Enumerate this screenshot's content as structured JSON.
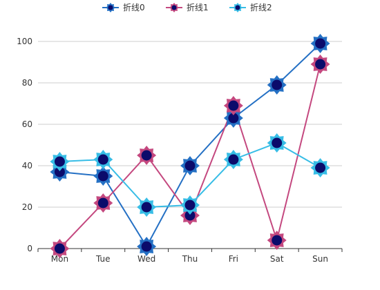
{
  "chart_data": {
    "type": "line",
    "categories": [
      "Mon",
      "Tue",
      "Wed",
      "Thu",
      "Fri",
      "Sat",
      "Sun"
    ],
    "ylim": [
      0,
      100
    ],
    "yticks": [
      0,
      20,
      40,
      60,
      80,
      100
    ],
    "grid": true,
    "legend_position": "top-center",
    "series": [
      {
        "name": "折线0",
        "color": "#2470c4",
        "values": [
          37,
          35,
          1,
          40,
          63,
          79,
          99
        ]
      },
      {
        "name": "折线1",
        "color": "#c4487f",
        "values": [
          0,
          22,
          45,
          16,
          69,
          4,
          89
        ]
      },
      {
        "name": "折线2",
        "color": "#37bde6",
        "values": [
          42,
          43,
          20,
          21,
          43,
          51,
          39
        ]
      }
    ],
    "marker_fill": "#0b0b6b"
  }
}
